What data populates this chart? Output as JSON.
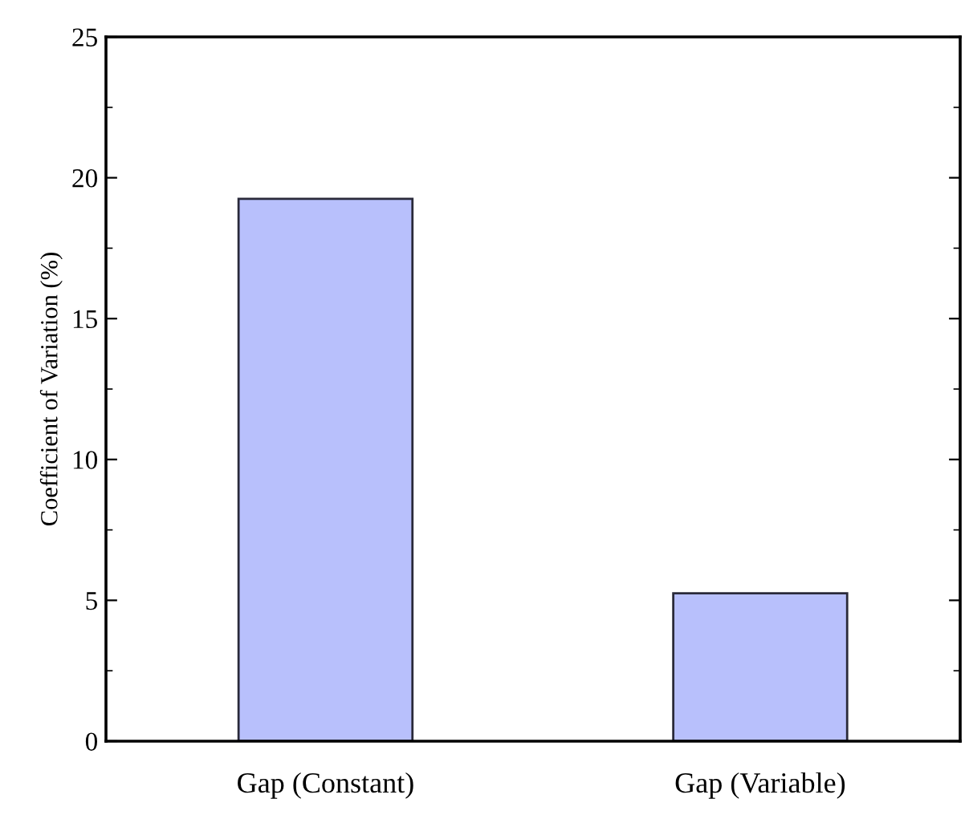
{
  "chart_data": {
    "type": "bar",
    "ylabel": "Coefficient of Variation (%)",
    "categories": [
      "Gap (Constant)",
      "Gap (Variable)"
    ],
    "values": [
      19.25,
      5.25
    ],
    "color": "#b8c0fc",
    "ylim": [
      0,
      25
    ],
    "yticks": [
      0,
      5,
      10,
      15,
      20,
      25
    ],
    "grid": false
  }
}
